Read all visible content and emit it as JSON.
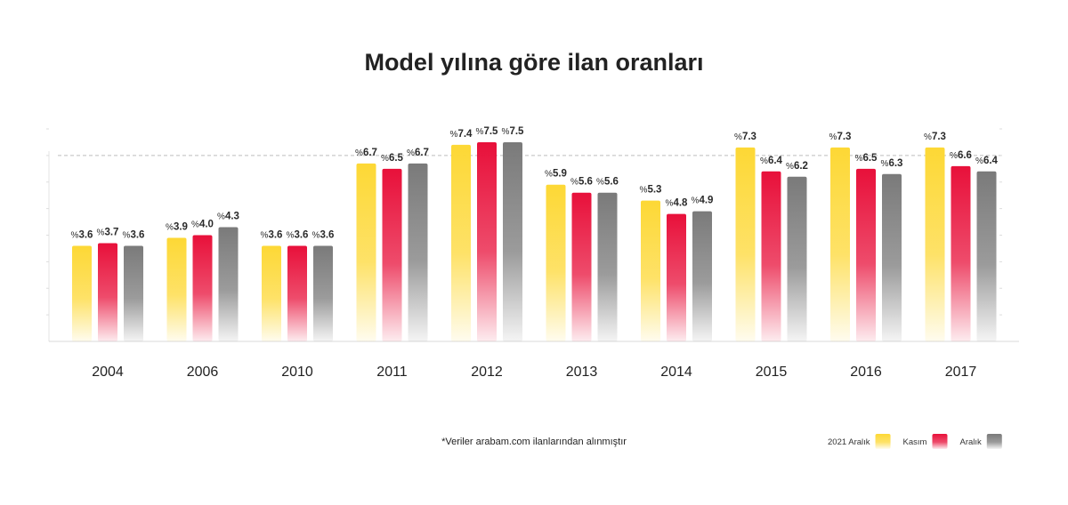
{
  "chart_data": {
    "type": "bar",
    "title": "Model yılına göre ilan oranları",
    "categories": [
      "2004",
      "2006",
      "2010",
      "2011",
      "2012",
      "2013",
      "2014",
      "2015",
      "2016",
      "2017"
    ],
    "series": [
      {
        "name": "2021 Aralık",
        "color": "#FDD835",
        "values": [
          3.6,
          3.9,
          3.6,
          6.7,
          7.4,
          5.9,
          5.3,
          7.3,
          7.3,
          7.3
        ]
      },
      {
        "name": "Kasım",
        "color": "#E8103A",
        "values": [
          3.7,
          4.0,
          3.6,
          6.5,
          7.5,
          5.6,
          4.8,
          6.4,
          6.5,
          6.6
        ]
      },
      {
        "name": "Aralık",
        "color": "#7A7A7A",
        "values": [
          3.6,
          4.3,
          3.6,
          6.7,
          7.5,
          5.6,
          4.9,
          6.2,
          6.3,
          6.4
        ]
      }
    ],
    "value_prefix": "%",
    "ylim": [
      0,
      8
    ],
    "reference_line": 7,
    "grid": false,
    "legend_position": "bottom-right",
    "footnote": "*Veriler arabam.com ilanlarından alınmıştır"
  }
}
